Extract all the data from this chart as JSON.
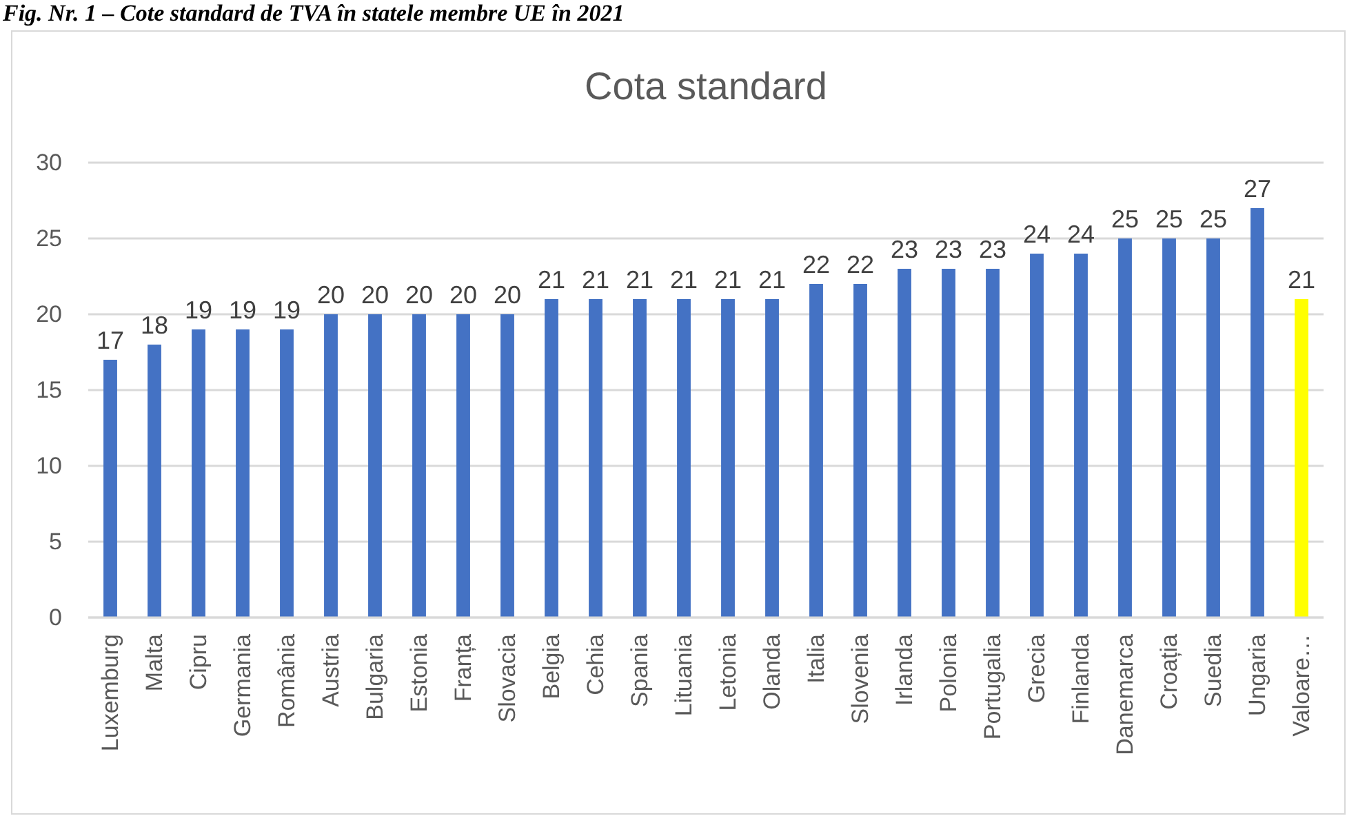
{
  "chart_data": {
    "type": "bar",
    "title": "Cota standard",
    "annotations": [
      "Fig. Nr. 1 – Cote standard de TVA în statele membre UE în 2021"
    ],
    "categories": [
      "Luxemburg",
      "Malta",
      "Cipru",
      "Germania",
      "România",
      "Austria",
      "Bulgaria",
      "Estonia",
      "Franța",
      "Slovacia",
      "Belgia",
      "Cehia",
      "Spania",
      "Lituania",
      "Letonia",
      "Olanda",
      "Italia",
      "Slovenia",
      "Irlanda",
      "Polonia",
      "Portugalia",
      "Grecia",
      "Finlanda",
      "Danemarca",
      "Croația",
      "Suedia",
      "Ungaria",
      "Valoare…"
    ],
    "values": [
      17,
      18,
      19,
      19,
      19,
      20,
      20,
      20,
      20,
      20,
      21,
      21,
      21,
      21,
      21,
      21,
      22,
      22,
      23,
      23,
      23,
      24,
      24,
      25,
      25,
      25,
      27,
      21
    ],
    "colors": [
      "#4472c4",
      "#4472c4",
      "#4472c4",
      "#4472c4",
      "#4472c4",
      "#4472c4",
      "#4472c4",
      "#4472c4",
      "#4472c4",
      "#4472c4",
      "#4472c4",
      "#4472c4",
      "#4472c4",
      "#4472c4",
      "#4472c4",
      "#4472c4",
      "#4472c4",
      "#4472c4",
      "#4472c4",
      "#4472c4",
      "#4472c4",
      "#4472c4",
      "#4472c4",
      "#4472c4",
      "#4472c4",
      "#4472c4",
      "#4472c4",
      "#ffff00"
    ],
    "ylim": [
      0,
      30
    ],
    "yticks": [
      0,
      5,
      10,
      15,
      20,
      25,
      30
    ],
    "grid": "y",
    "data_labels": true
  }
}
